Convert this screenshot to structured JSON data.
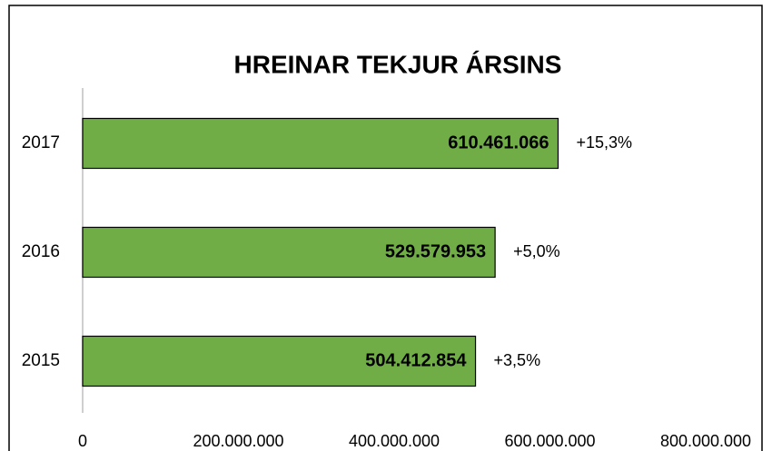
{
  "chart_data": {
    "type": "barh",
    "title": "HREINAR TEKJUR ÁRSINS",
    "categories": [
      "2017",
      "2016",
      "2015"
    ],
    "values": [
      610461066,
      529579953,
      504412854
    ],
    "value_labels": [
      "610.461.066",
      "529.579.953",
      "504.412.854"
    ],
    "annotations": [
      "+15,3%",
      "+5,0%",
      "+3,5%"
    ],
    "color": "#70ad47",
    "xlim": [
      0,
      800000000
    ],
    "xticks": [
      0,
      {
        "value": 200000000,
        "label": "200.000.000"
      },
      {
        "value": 400000000,
        "label": "400.000.000"
      },
      {
        "value": 600000000,
        "label": "600.000.000"
      },
      {
        "value": 800000000,
        "label": "800.000.000"
      }
    ],
    "grid": false
  }
}
